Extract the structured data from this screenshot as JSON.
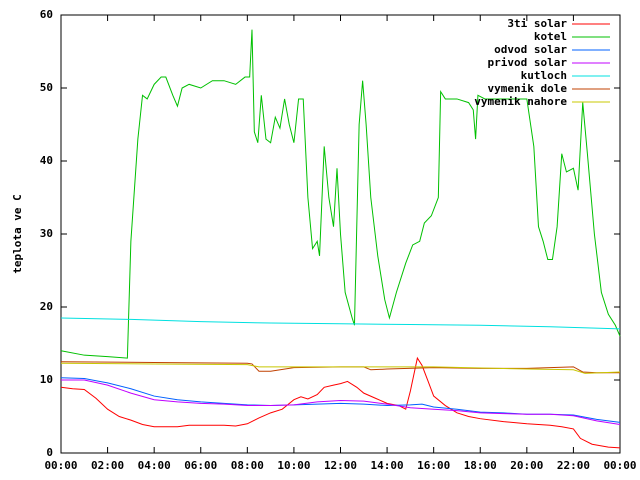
{
  "chart_data": {
    "type": "line",
    "y_label": "teplota ve C",
    "xlim": [
      0,
      24
    ],
    "xticks": [
      {
        "value": 0,
        "label": "00:00"
      },
      {
        "value": 2,
        "label": "02:00"
      },
      {
        "value": 4,
        "label": "04:00"
      },
      {
        "value": 6,
        "label": "06:00"
      },
      {
        "value": 8,
        "label": "08:00"
      },
      {
        "value": 10,
        "label": "10:00"
      },
      {
        "value": 12,
        "label": "12:00"
      },
      {
        "value": 14,
        "label": "14:00"
      },
      {
        "value": 16,
        "label": "16:00"
      },
      {
        "value": 18,
        "label": "18:00"
      },
      {
        "value": 20,
        "label": "20:00"
      },
      {
        "value": 22,
        "label": "22:00"
      },
      {
        "value": 24,
        "label": "00:00"
      }
    ],
    "ylim": [
      0,
      60
    ],
    "yticks": [
      0,
      10,
      20,
      30,
      40,
      50,
      60
    ],
    "grid": false,
    "legend": "top-right",
    "series": [
      {
        "name": "3ti solar",
        "color": "#ff0000",
        "x": [
          0,
          0.5,
          1,
          1.5,
          2,
          2.5,
          3,
          3.5,
          4,
          5,
          5.5,
          6,
          7,
          7.5,
          8,
          8.5,
          9,
          9.5,
          10,
          10.3,
          10.6,
          11,
          11.3,
          11.7,
          12,
          12.3,
          12.7,
          13,
          13.5,
          14,
          14.5,
          14.8,
          15,
          15.3,
          15.5,
          15.8,
          16,
          16.5,
          17,
          17.5,
          18,
          19,
          20,
          21,
          21.5,
          22,
          22.3,
          22.8,
          23.5,
          24
        ],
        "values": [
          9,
          8.8,
          8.7,
          7.5,
          6,
          5,
          4.5,
          3.9,
          3.6,
          3.6,
          3.8,
          3.8,
          3.8,
          3.7,
          4,
          4.8,
          5.5,
          6,
          7.3,
          7.7,
          7.4,
          8,
          9,
          9.3,
          9.5,
          9.8,
          9,
          8.2,
          7.5,
          6.8,
          6.5,
          6,
          8.5,
          13,
          12,
          9.5,
          7.8,
          6.5,
          5.5,
          5,
          4.7,
          4.3,
          4,
          3.8,
          3.6,
          3.3,
          2,
          1.2,
          0.8,
          0.7
        ]
      },
      {
        "name": "kotel",
        "color": "#00c000",
        "x": [
          0,
          1,
          2,
          2.85,
          3.0,
          3.3,
          3.5,
          3.7,
          4.0,
          4.3,
          4.5,
          4.8,
          5.0,
          5.2,
          5.5,
          6,
          6.5,
          7,
          7.5,
          7.9,
          8.1,
          8.2,
          8.3,
          8.45,
          8.6,
          8.8,
          9.0,
          9.2,
          9.4,
          9.6,
          9.8,
          10.0,
          10.2,
          10.4,
          10.6,
          10.8,
          11.0,
          11.1,
          11.3,
          11.5,
          11.7,
          11.85,
          12.0,
          12.2,
          12.5,
          12.6,
          12.8,
          12.95,
          13.1,
          13.3,
          13.6,
          13.9,
          14.1,
          14.4,
          14.8,
          15.1,
          15.4,
          15.6,
          15.9,
          16.2,
          16.3,
          16.5,
          17,
          17.5,
          17.7,
          17.8,
          17.9,
          18.2,
          19,
          20,
          20.3,
          20.5,
          20.7,
          20.9,
          21.1,
          21.3,
          21.5,
          21.7,
          22.0,
          22.2,
          22.4,
          22.6,
          22.9,
          23.2,
          23.5,
          23.8,
          24
        ],
        "values": [
          14,
          13.4,
          13.2,
          13,
          29,
          43,
          49,
          48.5,
          50.5,
          51.5,
          51.5,
          49,
          47.5,
          50,
          50.5,
          50,
          51,
          51,
          50.5,
          51.5,
          51.5,
          58,
          44,
          42.5,
          49,
          43,
          42.5,
          46,
          44.5,
          48.5,
          45,
          42.5,
          48.5,
          48.5,
          35,
          28,
          29,
          27,
          42,
          35,
          31,
          39,
          30,
          22,
          18.5,
          17.5,
          45,
          51,
          45,
          35,
          27,
          21,
          18.5,
          22,
          26,
          28.5,
          29,
          31.5,
          32.5,
          35,
          49.5,
          48.5,
          48.5,
          48,
          47,
          43,
          49,
          48.5,
          48.5,
          48.5,
          42,
          31,
          29,
          26.5,
          26.5,
          31,
          41,
          38.5,
          39,
          36,
          48,
          41,
          30,
          22,
          19,
          17.5,
          16
        ]
      },
      {
        "name": "odvod solar",
        "color": "#0060ff",
        "x": [
          0,
          1,
          2,
          3,
          4,
          5,
          6,
          7,
          8,
          9,
          10,
          11,
          12,
          13,
          14,
          15,
          15.5,
          16,
          17,
          18,
          19,
          20,
          21,
          22,
          23,
          24
        ],
        "values": [
          10.3,
          10.2,
          9.6,
          8.8,
          7.8,
          7.3,
          7,
          6.8,
          6.6,
          6.5,
          6.6,
          6.7,
          6.8,
          6.7,
          6.5,
          6.6,
          6.7,
          6.3,
          6,
          5.6,
          5.5,
          5.3,
          5.3,
          5.2,
          4.6,
          4.2
        ]
      },
      {
        "name": "privod solar",
        "color": "#c000ff",
        "x": [
          0,
          1,
          2,
          3,
          4,
          5,
          6,
          7,
          8,
          9,
          10,
          11,
          12,
          13,
          14,
          15,
          16,
          17,
          18,
          19,
          20,
          21,
          22,
          23,
          24
        ],
        "values": [
          10,
          10,
          9.3,
          8.2,
          7.3,
          7,
          6.8,
          6.7,
          6.5,
          6.5,
          6.6,
          7,
          7.2,
          7.1,
          6.7,
          6.2,
          6,
          5.8,
          5.5,
          5.4,
          5.3,
          5.3,
          5.1,
          4.4,
          3.9
        ]
      },
      {
        "name": "kutloch",
        "color": "#00e0e0",
        "x": [
          0,
          3,
          6,
          9,
          12,
          15,
          18,
          21,
          24
        ],
        "values": [
          18.5,
          18.3,
          18,
          17.8,
          17.7,
          17.6,
          17.5,
          17.3,
          17
        ]
      },
      {
        "name": "vymenik dole",
        "color": "#c04000",
        "x": [
          0,
          4,
          8,
          8.2,
          8.5,
          9,
          10,
          12,
          13,
          13.3,
          14,
          16,
          18,
          20,
          22,
          22.4,
          23,
          24
        ],
        "values": [
          12.5,
          12.4,
          12.3,
          12.2,
          11.2,
          11.2,
          11.7,
          11.8,
          11.8,
          11.4,
          11.5,
          11.7,
          11.6,
          11.6,
          11.8,
          11.1,
          11,
          11
        ]
      },
      {
        "name": "vymenik nahore",
        "color": "#c8c800",
        "x": [
          0,
          4,
          8,
          8.5,
          10,
          14,
          16,
          20,
          22,
          22.5,
          24
        ],
        "values": [
          12.3,
          12.2,
          12.1,
          11.8,
          11.8,
          11.8,
          11.8,
          11.5,
          11.4,
          10.9,
          11.1
        ]
      }
    ]
  }
}
